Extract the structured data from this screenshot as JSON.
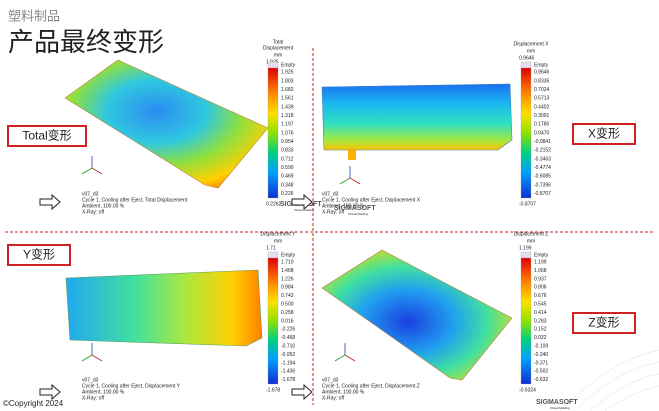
{
  "header": {
    "section": "塑料制品",
    "title": "产品最终变形"
  },
  "panels": [
    {
      "label": "Total变形",
      "legend_title": [
        "Total",
        "Displacement"
      ],
      "unit": "mm",
      "max": "1.925",
      "empty": "Empty",
      "ticks": [
        "1.925",
        "1.803",
        "1.682",
        "1.561",
        "1.439",
        "1.318",
        "1.197",
        "1.076",
        "0.954",
        "0.833",
        "0.712",
        "0.590",
        "0.469",
        "0.348",
        "0.226"
      ],
      "min": "0.2262",
      "caption": [
        "v07_d3",
        "Cycle 1, Cooling after Eject, Total Displacement",
        "Ambient, 100.00 %",
        "X-Ray: off"
      ]
    },
    {
      "label": "X变形",
      "legend_title": [
        "Displacement X"
      ],
      "unit": "mm",
      "max": "0.9646",
      "empty": "Empty",
      "ticks": [
        "0.9646",
        "0.8335",
        "0.7024",
        "0.5713",
        "0.4402",
        "0.3091",
        "0.1780",
        "0.0470",
        "-0.0841",
        "-0.2152",
        "-0.3463",
        "-0.4774",
        "-0.6085",
        "-0.7396",
        "-0.8707"
      ],
      "min": "-0.8707",
      "caption": [
        "v07_d3",
        "Cycle 1, Cooling after Eject, Displacement X",
        "Ambient, 100.00 %",
        "X-Ray: off"
      ]
    },
    {
      "label": "Y变形",
      "legend_title": [
        "Displacement Y"
      ],
      "unit": "mm",
      "max": "1.71",
      "empty": "Empty",
      "ticks": [
        "1.710",
        "1.468",
        "1.226",
        "0.984",
        "0.742",
        "0.500",
        "0.258",
        "0.016",
        "-0.226",
        "-0.468",
        "-0.710",
        "-0.952",
        "-1.194",
        "-1.436",
        "-1.678"
      ],
      "min": "-1.678",
      "caption": [
        "v07_d3",
        "Cycle 1, Cooling after Eject, Displacement Y",
        "Ambient, 100.00 %",
        "X-Ray: off"
      ]
    },
    {
      "label": "Z变形",
      "legend_title": [
        "Displacement Z"
      ],
      "unit": "mm",
      "max": "1.199",
      "empty": "Empty",
      "ticks": [
        "1.199",
        "1.068",
        "0.937",
        "0.806",
        "0.676",
        "0.545",
        "0.414",
        "0.283",
        "0.152",
        "0.022",
        "-0.109",
        "-0.240",
        "-0.371",
        "-0.502",
        "-0.632"
      ],
      "min": "-0.6324",
      "caption": [
        "v07_d3",
        "Cycle 1, Cooling after Eject, Displacement Z",
        "Ambient, 100.00 %",
        "X-Ray: off"
      ]
    }
  ],
  "logo": {
    "name": "SIGMASOFT",
    "tagline": "Virtual Molding"
  },
  "footer": "©Copyright 2024"
}
